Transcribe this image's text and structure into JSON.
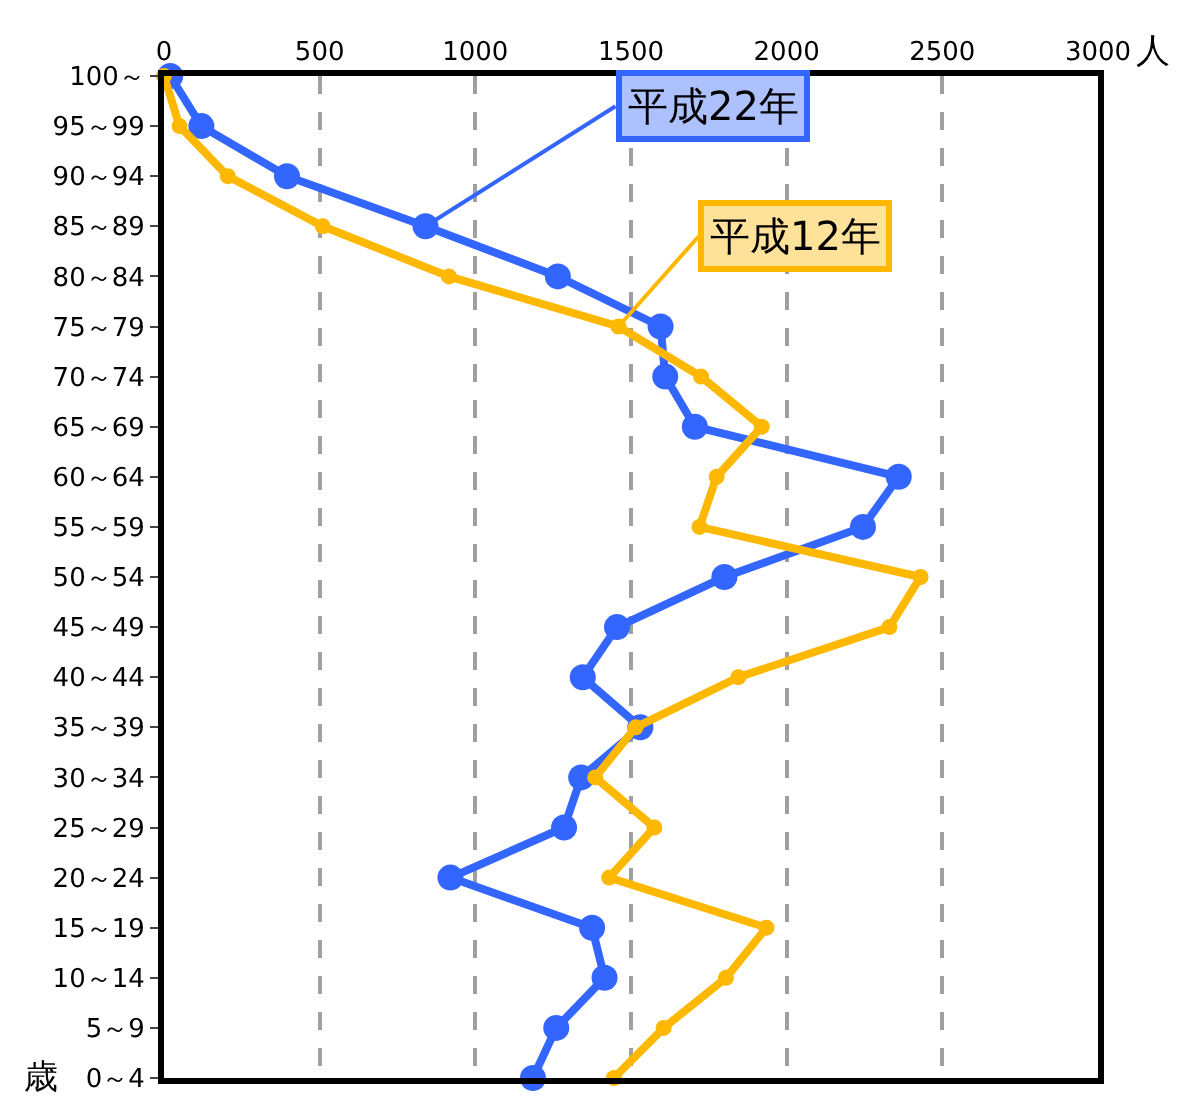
{
  "chart_data": {
    "type": "line",
    "orientation": "horizontal",
    "xlabel": "人",
    "ylabel": "歳",
    "categories": [
      "100～",
      "95～99",
      "90～94",
      "85～89",
      "80～84",
      "75～79",
      "70～74",
      "65～69",
      "60～64",
      "55～59",
      "50～54",
      "45～49",
      "40～44",
      "35～39",
      "30～34",
      "25～29",
      "20～24",
      "15～19",
      "10～14",
      "5～9",
      "0～4"
    ],
    "series": [
      {
        "name": "平成22年",
        "color": "#3366ff",
        "values": [
          20,
          120,
          395,
          840,
          1265,
          1595,
          1610,
          1705,
          2360,
          2245,
          1800,
          1455,
          1345,
          1530,
          1340,
          1285,
          920,
          1375,
          1415,
          1260,
          1185
        ]
      },
      {
        "name": "平成12年",
        "color": "#ffb800",
        "values": [
          0,
          50,
          205,
          510,
          915,
          1460,
          1725,
          1920,
          1775,
          1720,
          2430,
          2330,
          1845,
          1515,
          1385,
          1575,
          1430,
          1935,
          1805,
          1605,
          1445
        ]
      }
    ],
    "xlim": [
      0,
      3000
    ],
    "xticks": [
      0,
      500,
      1000,
      1500,
      2000,
      2500,
      3000
    ],
    "grid": "x",
    "marker": "circle",
    "line_style": "solid"
  }
}
